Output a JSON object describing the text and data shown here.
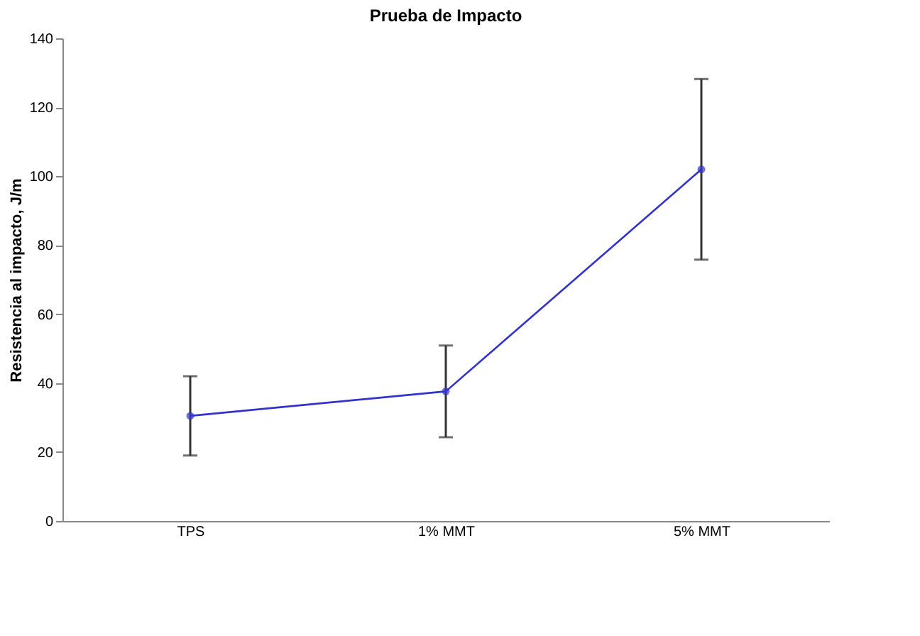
{
  "chart_data": {
    "type": "line",
    "title": "Prueba de Impacto",
    "ylabel": "Resistencia al impacto, J/m",
    "categories": [
      "TPS",
      "1% MMT",
      "5% MMT"
    ],
    "series": [
      {
        "color": "#3333cc",
        "values": [
          30.5,
          37.6,
          102
        ],
        "errors": [
          11.5,
          13.3,
          26.2
        ]
      }
    ],
    "ylim": [
      0,
      140
    ],
    "yticks": [
      0,
      20,
      40,
      60,
      80,
      100,
      120,
      140
    ],
    "grid": false,
    "marker": "circle",
    "line_style": "solid"
  }
}
